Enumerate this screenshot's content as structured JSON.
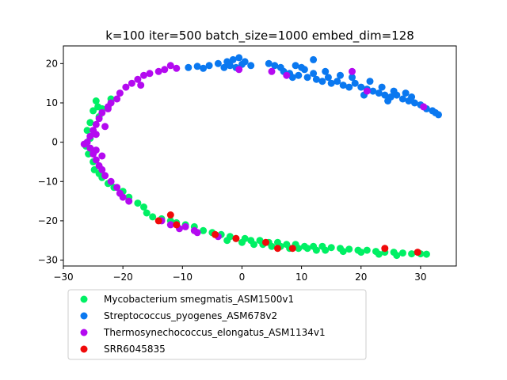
{
  "chart_data": {
    "type": "scatter",
    "title": "k=100 iter=500 batch_size=1000 embed_dim=128",
    "xlabel": "",
    "ylabel": "",
    "xlim": [
      -30,
      36
    ],
    "ylim": [
      -31.5,
      24.5
    ],
    "xticks": [
      -30,
      -20,
      -10,
      0,
      10,
      20,
      30
    ],
    "yticks": [
      -30,
      -20,
      -10,
      0,
      10,
      20
    ],
    "grid": false,
    "legend_position": "below",
    "series": [
      {
        "name": "Mycobacterium smegmatis_ASM1500v1",
        "color": "#00f064",
        "points": [
          [
            -24.5,
            10.5
          ],
          [
            -24.2,
            9.0
          ],
          [
            -25.0,
            8.0
          ],
          [
            -24.0,
            6.5
          ],
          [
            -25.5,
            5.0
          ],
          [
            -26.0,
            3.0
          ],
          [
            -25.5,
            1.0
          ],
          [
            -26.2,
            -1.0
          ],
          [
            -25.8,
            -3.0
          ],
          [
            -25.0,
            -5.0
          ],
          [
            -24.8,
            -7.0
          ],
          [
            -24.0,
            -8.0
          ],
          [
            -23.5,
            -9.0
          ],
          [
            -22.5,
            -10.5
          ],
          [
            -21.5,
            -11.5
          ],
          [
            -20.0,
            -12.5
          ],
          [
            -19.0,
            -14.0
          ],
          [
            -17.5,
            -15.5
          ],
          [
            -16.5,
            -16.5
          ],
          [
            -16.0,
            -18.0
          ],
          [
            -15.0,
            -19.0
          ],
          [
            -13.5,
            -19.5
          ],
          [
            -12.0,
            -20.0
          ],
          [
            -11.0,
            -20.5
          ],
          [
            -9.5,
            -21.0
          ],
          [
            -8.0,
            -21.5
          ],
          [
            -6.5,
            -22.5
          ],
          [
            -5.0,
            -23.0
          ],
          [
            -3.5,
            -23.5
          ],
          [
            -2.0,
            -24.0
          ],
          [
            -1.0,
            -24.5
          ],
          [
            0.5,
            -24.5
          ],
          [
            1.5,
            -25.0
          ],
          [
            3.0,
            -25.0
          ],
          [
            4.5,
            -25.5
          ],
          [
            6.0,
            -25.5
          ],
          [
            7.5,
            -26.0
          ],
          [
            9.0,
            -26.0
          ],
          [
            10.5,
            -26.5
          ],
          [
            12.0,
            -26.5
          ],
          [
            13.5,
            -26.5
          ],
          [
            15.0,
            -26.8
          ],
          [
            16.5,
            -27.0
          ],
          [
            18.0,
            -27.2
          ],
          [
            19.5,
            -27.5
          ],
          [
            21.0,
            -27.5
          ],
          [
            22.5,
            -27.8
          ],
          [
            24.0,
            -28.0
          ],
          [
            25.5,
            -28.0
          ],
          [
            27.0,
            -28.2
          ],
          [
            28.5,
            -28.4
          ],
          [
            30.0,
            -28.4
          ],
          [
            31.0,
            -28.5
          ],
          [
            2.0,
            -26.0
          ],
          [
            5.0,
            -26.5
          ],
          [
            8.0,
            -27.0
          ],
          [
            11.0,
            -27.0
          ],
          [
            14.0,
            -27.5
          ],
          [
            17.0,
            -27.8
          ],
          [
            20.0,
            -28.0
          ],
          [
            23.0,
            -28.5
          ],
          [
            26.0,
            -28.8
          ],
          [
            -22.0,
            11.0
          ],
          [
            -23.5,
            8.5
          ],
          [
            -2.5,
            -25.0
          ],
          [
            0.0,
            -25.5
          ],
          [
            3.5,
            -26.0
          ],
          [
            6.5,
            -26.5
          ],
          [
            9.5,
            -27.0
          ],
          [
            12.5,
            -27.5
          ]
        ]
      },
      {
        "name": "Streptococcus_pyogenes_ASM678v2",
        "color": "#0a78f0",
        "points": [
          [
            -9.0,
            19.0
          ],
          [
            -7.5,
            19.3
          ],
          [
            -5.5,
            19.5
          ],
          [
            -4.0,
            20.0
          ],
          [
            -2.5,
            20.5
          ],
          [
            -1.5,
            21.0
          ],
          [
            -0.5,
            21.5
          ],
          [
            0.5,
            20.5
          ],
          [
            -2.0,
            19.5
          ],
          [
            -1.0,
            19.0
          ],
          [
            0.0,
            19.8
          ],
          [
            -3.0,
            19.0
          ],
          [
            4.5,
            20.0
          ],
          [
            5.5,
            19.5
          ],
          [
            6.5,
            19.0
          ],
          [
            7.0,
            18.0
          ],
          [
            8.0,
            17.5
          ],
          [
            9.0,
            19.5
          ],
          [
            9.5,
            17.0
          ],
          [
            10.5,
            18.5
          ],
          [
            11.0,
            16.5
          ],
          [
            12.0,
            17.5
          ],
          [
            12.5,
            16.0
          ],
          [
            13.5,
            15.5
          ],
          [
            14.5,
            16.5
          ],
          [
            15.0,
            15.0
          ],
          [
            16.0,
            15.5
          ],
          [
            17.0,
            14.5
          ],
          [
            18.0,
            14.0
          ],
          [
            19.0,
            15.0
          ],
          [
            20.0,
            14.0
          ],
          [
            21.0,
            13.5
          ],
          [
            22.0,
            13.0
          ],
          [
            23.0,
            12.5
          ],
          [
            24.0,
            12.0
          ],
          [
            25.0,
            11.5
          ],
          [
            26.0,
            12.0
          ],
          [
            27.0,
            11.0
          ],
          [
            28.0,
            10.5
          ],
          [
            29.0,
            10.0
          ],
          [
            30.0,
            9.5
          ],
          [
            31.0,
            8.5
          ],
          [
            32.0,
            8.0
          ],
          [
            33.0,
            7.0
          ],
          [
            32.5,
            7.5
          ],
          [
            14.0,
            18.0
          ],
          [
            16.5,
            17.0
          ],
          [
            18.5,
            16.5
          ],
          [
            21.5,
            15.5
          ],
          [
            23.5,
            14.0
          ],
          [
            25.5,
            13.0
          ],
          [
            27.5,
            12.5
          ],
          [
            12.0,
            21.0
          ],
          [
            10.0,
            19.0
          ],
          [
            8.5,
            16.5
          ],
          [
            1.5,
            19.5
          ],
          [
            -6.5,
            18.8
          ],
          [
            20.5,
            12.0
          ],
          [
            24.5,
            10.5
          ],
          [
            28.5,
            11.5
          ]
        ]
      },
      {
        "name": "Thermosynechococcus_elongatus_ASM1134v1",
        "color": "#b40af0",
        "points": [
          [
            -12.0,
            19.5
          ],
          [
            -13.0,
            18.5
          ],
          [
            -14.0,
            18.0
          ],
          [
            -15.5,
            17.5
          ],
          [
            -16.5,
            17.0
          ],
          [
            -17.5,
            16.0
          ],
          [
            -18.5,
            15.0
          ],
          [
            -19.5,
            14.0
          ],
          [
            -20.5,
            12.5
          ],
          [
            -21.0,
            11.0
          ],
          [
            -22.0,
            10.0
          ],
          [
            -22.5,
            8.5
          ],
          [
            -23.5,
            7.5
          ],
          [
            -24.0,
            6.0
          ],
          [
            -24.5,
            4.5
          ],
          [
            -25.0,
            3.0
          ],
          [
            -25.5,
            1.5
          ],
          [
            -26.0,
            0.0
          ],
          [
            -26.5,
            -0.5
          ],
          [
            -25.5,
            -1.5
          ],
          [
            -25.0,
            -3.0
          ],
          [
            -24.5,
            -4.5
          ],
          [
            -24.0,
            -6.0
          ],
          [
            -23.5,
            -7.0
          ],
          [
            -23.0,
            -8.5
          ],
          [
            -22.0,
            -10.0
          ],
          [
            -21.0,
            -11.5
          ],
          [
            -20.5,
            -13.0
          ],
          [
            -20.0,
            -14.0
          ],
          [
            -19.0,
            -15.0
          ],
          [
            -24.5,
            2.0
          ],
          [
            -23.0,
            4.0
          ],
          [
            -24.5,
            -2.0
          ],
          [
            -23.5,
            -3.5
          ],
          [
            -22.5,
            9.0
          ],
          [
            -13.5,
            -20.0
          ],
          [
            -12.0,
            -21.0
          ],
          [
            -10.5,
            -22.0
          ],
          [
            -9.5,
            -21.5
          ],
          [
            -8.0,
            -22.5
          ],
          [
            -7.5,
            -23.0
          ],
          [
            -4.0,
            -24.0
          ],
          [
            5.0,
            18.0
          ],
          [
            7.5,
            17.0
          ],
          [
            18.5,
            18.0
          ],
          [
            21.0,
            13.0
          ],
          [
            30.5,
            9.0
          ],
          [
            -0.5,
            18.5
          ],
          [
            -11.0,
            18.8
          ],
          [
            -17.0,
            14.5
          ]
        ]
      },
      {
        "name": "SRR6045835",
        "color": "#f00a0a",
        "points": [
          [
            -14.0,
            -20.0
          ],
          [
            -12.0,
            -18.5
          ],
          [
            -11.0,
            -21.0
          ],
          [
            -4.5,
            -23.5
          ],
          [
            -1.0,
            -24.5
          ],
          [
            4.0,
            -25.5
          ],
          [
            6.0,
            -27.0
          ],
          [
            8.5,
            -27.0
          ],
          [
            24.0,
            -27.0
          ],
          [
            29.5,
            -28.0
          ]
        ]
      }
    ]
  }
}
